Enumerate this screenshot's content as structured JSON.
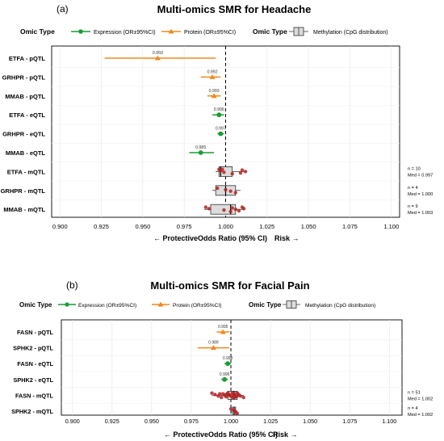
{
  "chart_data": [
    {
      "type": "forest",
      "panel_label": "(a)",
      "title": "Multi-omics SMR for Headache",
      "legend": {
        "omic_type_label": "Omic Type",
        "expression_label": "Expression (OR±95%CI)",
        "protein_label": "Protein (OR±95%CI)",
        "methylation_label": "Methylation (CpG distribution)"
      },
      "xlim": [
        0.895,
        1.105
      ],
      "x_ticks": [
        "0.900",
        "0.925",
        "0.950",
        "0.975",
        "1.000",
        "1.025",
        "1.050",
        "1.075",
        "1.100"
      ],
      "x_tick_values": [
        0.9,
        0.925,
        0.95,
        0.975,
        1.0,
        1.025,
        1.05,
        1.075,
        1.1
      ],
      "reference_line": 1.0,
      "xlabel": {
        "protective": "← Protective",
        "center": "Odds Ratio (95% CI)",
        "risk": "Risk →"
      },
      "rows": [
        {
          "label": "ETFA - pQTL",
          "type": "protein",
          "or": 0.959,
          "lo": 0.927,
          "hi": 0.994,
          "or_label": "0.959"
        },
        {
          "label": "GRHPR - pQTL",
          "type": "protein",
          "or": 0.992,
          "lo": 0.985,
          "hi": 0.997,
          "or_label": "0.992"
        },
        {
          "label": "MMAB - pQTL",
          "type": "protein",
          "or": 0.993,
          "lo": 0.989,
          "hi": 0.997,
          "or_label": "0.993"
        },
        {
          "label": "ETFA - eQTL",
          "type": "expression",
          "or": 0.996,
          "lo": 0.992,
          "hi": 0.999,
          "or_label": "0.996"
        },
        {
          "label": "GRHPR - eQTL",
          "type": "expression",
          "or": 0.997,
          "lo": 0.995,
          "hi": 0.999,
          "or_label": "0.997"
        },
        {
          "label": "MMAB - eQTL",
          "type": "expression",
          "or": 0.985,
          "lo": 0.978,
          "hi": 0.993,
          "or_label": "0.985"
        },
        {
          "label": "ETFA - mQTL",
          "type": "methylation",
          "q1": 0.996,
          "median": 0.997,
          "q3": 1.004,
          "wlo": 0.994,
          "whi": 1.012,
          "points": [
            0.996,
            0.997,
            0.999,
            1.004,
            1.01,
            1.012,
            1.009,
            0.998
          ],
          "n_label": "n = 10",
          "med_label": "Med = 0.997"
        },
        {
          "label": "GRHPR - mQTL",
          "type": "methylation",
          "q1": 0.994,
          "median": 1.0,
          "q3": 1.006,
          "wlo": 0.992,
          "whi": 1.009,
          "points": [
            0.995,
            1.0,
            1.003,
            1.006
          ],
          "n_label": "n = 4",
          "med_label": "Med = 1.000"
        },
        {
          "label": "MMAB - mQTL",
          "type": "methylation",
          "q1": 0.991,
          "median": 1.003,
          "q3": 1.006,
          "wlo": 0.987,
          "whi": 1.011,
          "points": [
            0.988,
            0.99,
            0.999,
            1.003,
            1.004,
            1.006,
            1.008,
            1.01,
            1.011
          ],
          "n_label": "n = 9",
          "med_label": "Med = 1.003"
        }
      ],
      "colors": {
        "expression": "#1a9c33",
        "protein": "#ee8a1d",
        "points": "#b22222",
        "box": "#dcdcdc"
      }
    },
    {
      "type": "forest",
      "panel_label": "(b)",
      "title": "Multi-omics SMR for Facial Pain",
      "legend": {
        "omic_type_label": "Omic Type",
        "expression_label": "Expression (OR±95%CI)",
        "protein_label": "Protein (OR±95%CI)",
        "methylation_label": "Methylation (CpG distribution)"
      },
      "xlim": [
        0.893,
        1.108
      ],
      "x_ticks": [
        "0.900",
        "0.925",
        "0.950",
        "0.975",
        "1.000",
        "1.025",
        "1.050",
        "1.075",
        "1.100"
      ],
      "x_tick_values": [
        0.9,
        0.925,
        0.95,
        0.975,
        1.0,
        1.025,
        1.05,
        1.075,
        1.1
      ],
      "reference_line": 1.0,
      "xlabel": {
        "protective": "← Protective",
        "center": "Odds Ratio (95% CI)",
        "risk": "Risk →"
      },
      "rows": [
        {
          "label": "FASN - pQTL",
          "type": "protein",
          "or": 0.995,
          "lo": 0.991,
          "hi": 0.999,
          "or_label": "0.995"
        },
        {
          "label": "SPHK2 - pQTL",
          "type": "protein",
          "or": 0.989,
          "lo": 0.979,
          "hi": 0.999,
          "or_label": "0.989"
        },
        {
          "label": "FASN - eQTL",
          "type": "expression",
          "or": 0.998,
          "lo": 0.996,
          "hi": 1.0,
          "or_label": "0.998"
        },
        {
          "label": "SPHK2 - eQTL",
          "type": "expression",
          "or": 0.996,
          "lo": 0.994,
          "hi": 0.998,
          "or_label": "0.996"
        },
        {
          "label": "FASN - mQTL",
          "type": "methylation",
          "q1": 0.998,
          "median": 1.002,
          "q3": 1.004,
          "wlo": 0.988,
          "whi": 1.008,
          "points": [
            0.988,
            0.99,
            0.992,
            0.994,
            0.995,
            0.996,
            0.997,
            0.998,
            0.999,
            1.0,
            1.001,
            1.002,
            1.002,
            1.003,
            1.004,
            1.005,
            1.006,
            1.008,
            0.993,
            0.999,
            1.003,
            1.001,
            0.997,
            1.004
          ],
          "n_label": "n = 51",
          "med_label": "Med = 1.002"
        },
        {
          "label": "SPHK2 - mQTL",
          "type": "methylation",
          "q1": 1.001,
          "median": 1.002,
          "q3": 1.003,
          "wlo": 1.0,
          "whi": 1.004,
          "points": [
            1.0,
            1.002,
            1.003,
            1.004
          ],
          "n_label": "n = 4",
          "med_label": "Med = 1.002"
        }
      ],
      "colors": {
        "expression": "#1a9c33",
        "protein": "#ee8a1d",
        "points": "#b22222",
        "box": "#dcdcdc"
      }
    }
  ]
}
